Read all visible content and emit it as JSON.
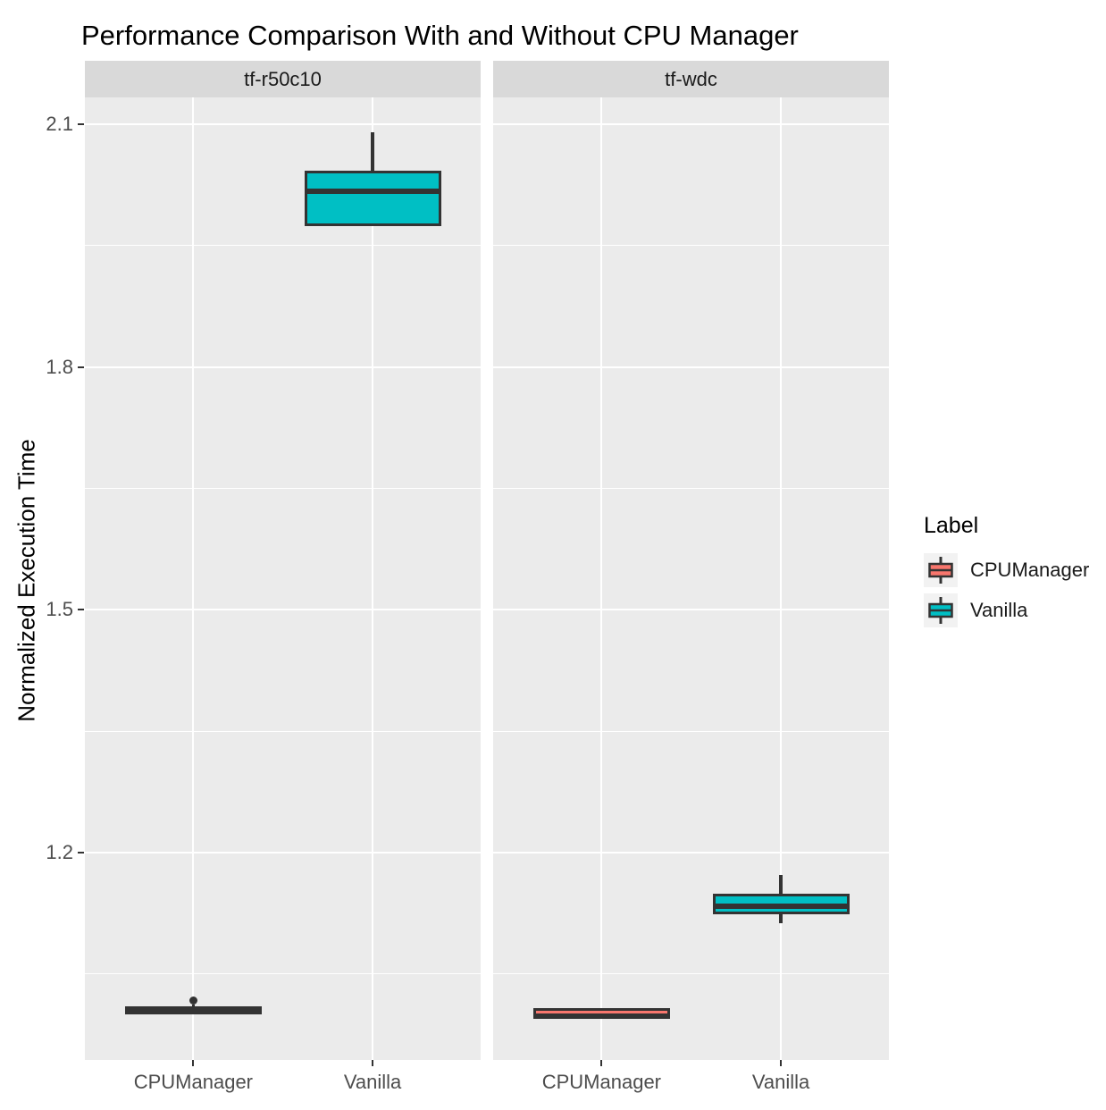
{
  "chart_data": {
    "type": "boxplot",
    "title": "Performance Comparison With and Without CPU Manager",
    "ylabel": "Normalized Execution Time",
    "xlabel": "",
    "categories": [
      "CPUManager",
      "Vanilla"
    ],
    "grid": true,
    "legend_position": "right",
    "ylim": [
      0.95,
      2.12
    ],
    "y_ticks": [
      {
        "label": "2.1",
        "value": 2.1
      },
      {
        "label": "1.8",
        "value": 1.8
      },
      {
        "label": "1.5",
        "value": 1.5
      },
      {
        "label": "1.2",
        "value": 1.2
      }
    ],
    "y_minor_ticks": [
      1.95,
      1.65,
      1.35,
      1.05
    ],
    "facets": [
      {
        "name": "tf-r50c10",
        "boxes": [
          {
            "category": "CPUManager",
            "series": "CPUManager",
            "min": 1.0,
            "q1": 1.002,
            "median": 1.006,
            "q3": 1.01,
            "max": 1.012,
            "outliers": [
              1.017
            ]
          },
          {
            "category": "Vanilla",
            "series": "Vanilla",
            "min": 1.974,
            "q1": 1.974,
            "median": 2.017,
            "q3": 2.043,
            "max": 2.09,
            "outliers": []
          }
        ]
      },
      {
        "name": "tf-wdc",
        "boxes": [
          {
            "category": "CPUManager",
            "series": "CPUManager",
            "min": 0.995,
            "q1": 0.996,
            "median": 0.998,
            "q3": 1.008,
            "max": 1.009,
            "outliers": []
          },
          {
            "category": "Vanilla",
            "series": "Vanilla",
            "min": 1.113,
            "q1": 1.124,
            "median": 1.134,
            "q3": 1.149,
            "max": 1.172,
            "outliers": []
          }
        ]
      }
    ]
  },
  "legend": {
    "title": "Label",
    "entries": [
      {
        "label": "CPUManager",
        "color": "#F8766D"
      },
      {
        "label": "Vanilla",
        "color": "#00BFC4"
      }
    ]
  },
  "colors": {
    "cpumanager_fill": "#F8766D",
    "vanilla_fill": "#00BFC4",
    "box_border": "#333333",
    "panel_bg": "#EBEBEB",
    "strip_bg": "#D9D9D9",
    "gridline": "#FFFFFF",
    "axis_text": "#4D4D4D",
    "legend_key_bg": "#F2F2F2"
  }
}
